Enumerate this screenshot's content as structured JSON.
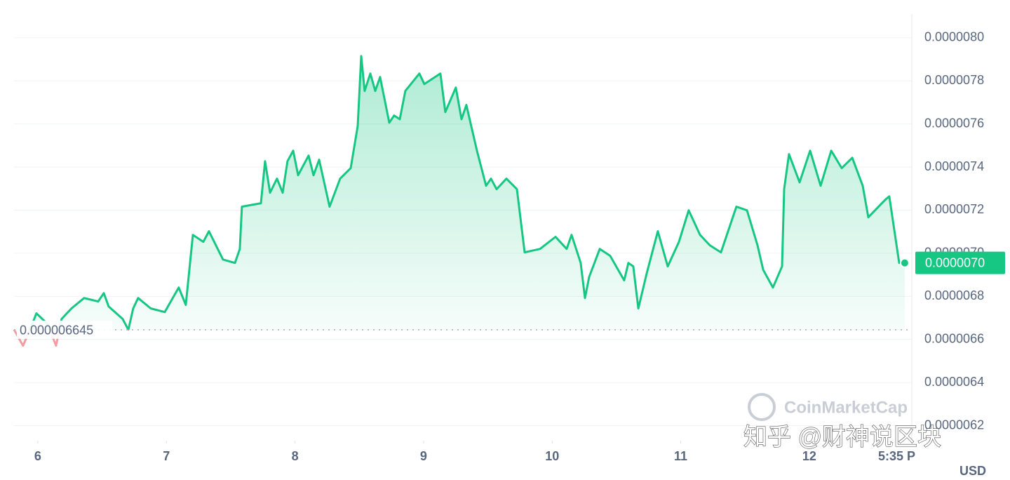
{
  "chart_data": {
    "type": "line",
    "x": [
      5.815,
      5.885,
      5.951,
      5.989,
      6.076,
      6.142,
      6.185,
      6.262,
      6.36,
      6.469,
      6.513,
      6.551,
      6.66,
      6.704,
      6.742,
      6.78,
      6.878,
      6.987,
      7.096,
      7.151,
      7.206,
      7.287,
      7.331,
      7.44,
      7.533,
      7.571,
      7.587,
      7.735,
      7.767,
      7.806,
      7.86,
      7.904,
      7.942,
      7.986,
      8.024,
      8.106,
      8.144,
      8.188,
      8.269,
      8.351,
      8.433,
      8.488,
      8.515,
      8.542,
      8.586,
      8.624,
      8.662,
      8.733,
      8.771,
      8.815,
      8.858,
      8.967,
      9.006,
      9.131,
      9.169,
      9.251,
      9.295,
      9.333,
      9.415,
      9.486,
      9.524,
      9.568,
      9.644,
      9.726,
      9.786,
      9.906,
      10.026,
      10.113,
      10.151,
      10.222,
      10.255,
      10.288,
      10.37,
      10.451,
      10.56,
      10.593,
      10.631,
      10.67,
      10.735,
      10.822,
      10.899,
      10.986,
      11.062,
      11.15,
      11.226,
      11.313,
      11.433,
      11.515,
      11.597,
      11.641,
      11.717,
      11.788,
      11.804,
      11.842,
      11.924,
      12.006,
      12.088,
      12.17,
      12.252,
      12.334,
      12.415,
      12.459,
      12.59,
      12.622,
      12.699,
      12.742
    ],
    "series": [
      {
        "name": "USD",
        "color": "#16c784",
        "values": [
          6.646e-06,
          6.571e-06,
          6.662e-06,
          6.721e-06,
          6.672e-06,
          6.571e-06,
          6.695e-06,
          6.744e-06,
          6.792e-06,
          6.776e-06,
          6.815e-06,
          6.753e-06,
          6.695e-06,
          6.645e-06,
          6.744e-06,
          6.792e-06,
          6.744e-06,
          6.727e-06,
          6.841e-06,
          6.76e-06,
          7.085e-06,
          7.053e-06,
          7.102e-06,
          6.971e-06,
          6.955e-06,
          7.02e-06,
          7.216e-06,
          7.232e-06,
          7.427e-06,
          7.281e-06,
          7.346e-06,
          7.281e-06,
          7.427e-06,
          7.476e-06,
          7.362e-06,
          7.453e-06,
          7.362e-06,
          7.434e-06,
          7.216e-06,
          7.346e-06,
          7.395e-06,
          7.59e-06,
          7.915e-06,
          7.753e-06,
          7.834e-06,
          7.753e-06,
          7.818e-06,
          7.606e-06,
          7.639e-06,
          7.622e-06,
          7.753e-06,
          7.834e-06,
          7.785e-06,
          7.834e-06,
          7.655e-06,
          7.769e-06,
          7.622e-06,
          7.688e-06,
          7.476e-06,
          7.313e-06,
          7.346e-06,
          7.297e-06,
          7.346e-06,
          7.297e-06,
          7.004e-06,
          7.02e-06,
          7.076e-06,
          7.02e-06,
          7.085e-06,
          6.955e-06,
          6.792e-06,
          6.89e-06,
          7.02e-06,
          6.988e-06,
          6.874e-06,
          6.955e-06,
          6.939e-06,
          6.744e-06,
          6.906e-06,
          7.102e-06,
          6.939e-06,
          7.053e-06,
          7.199e-06,
          7.085e-06,
          7.037e-06,
          7.004e-06,
          7.216e-06,
          7.199e-06,
          7.037e-06,
          6.923e-06,
          6.841e-06,
          6.939e-06,
          7.297e-06,
          7.46e-06,
          7.329e-06,
          7.476e-06,
          7.313e-06,
          7.476e-06,
          7.395e-06,
          7.443e-06,
          7.313e-06,
          7.167e-06,
          7.248e-06,
          7.264e-06,
          6.955e-06,
          6.955e-06
        ]
      }
    ],
    "low_color": "#ea3943",
    "xlim": [
      5.815,
      12.797
    ],
    "ylim": [
      6.13e-06,
      8.11e-06
    ],
    "xticks": [
      6,
      7,
      8,
      9,
      10,
      11,
      12,
      {
        "value": 12.68,
        "label": "5:35 P"
      }
    ],
    "yticks": [
      {
        "value": 6.2e-06,
        "label": "0.0000062"
      },
      {
        "value": 6.4e-06,
        "label": "0.0000064"
      },
      {
        "value": 6.6e-06,
        "label": "0.0000066"
      },
      {
        "value": 6.8e-06,
        "label": "0.0000068"
      },
      {
        "value": 7e-06,
        "label": "0.0000070"
      },
      {
        "value": 7.2e-06,
        "label": "0.0000072"
      },
      {
        "value": 7.4e-06,
        "label": "0.0000074"
      },
      {
        "value": 7.6e-06,
        "label": "0.0000076"
      },
      {
        "value": 7.8e-06,
        "label": "0.0000078"
      },
      {
        "value": 8e-06,
        "label": "0.0000080"
      }
    ],
    "grid": true,
    "annotations": [
      {
        "value": 6.645e-06,
        "label": "0.000006645"
      },
      {
        "value": 6.955e-06,
        "label": "0.0000070"
      }
    ],
    "currency": "USD",
    "watermarks": [
      "CoinMarketCap",
      "知乎 @财神说区块"
    ]
  }
}
